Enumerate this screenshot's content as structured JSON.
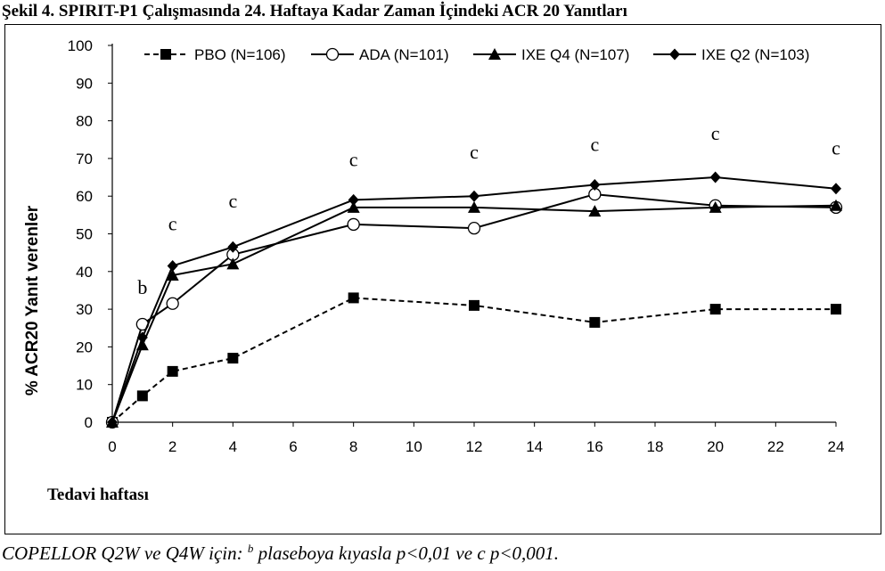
{
  "figure_title": "Şekil 4. SPIRIT-P1 Çalışmasında 24. Haftaya Kadar Zaman İçindeki ACR 20 Yanıtları",
  "footnote": {
    "prefix": "COPELLOR Q2W ve Q4W için: ",
    "sup_b": "b",
    "middle": " plaseboya kıyasla p<0,01 ve c p<0,001."
  },
  "chart_data": {
    "type": "line",
    "title": "",
    "xlabel": "Tedavi haftası",
    "ylabel": "% ACR20 Yanıt verenler",
    "xlim": [
      0,
      24
    ],
    "ylim": [
      0,
      100
    ],
    "xticks": [
      0,
      2,
      4,
      6,
      8,
      10,
      12,
      14,
      16,
      18,
      20,
      22,
      24
    ],
    "yticks": [
      0,
      10,
      20,
      30,
      40,
      50,
      60,
      70,
      80,
      90,
      100
    ],
    "grid": false,
    "legend_position": "top",
    "series": [
      {
        "name": "PBO (N=106)",
        "marker": "square",
        "line": "dashed",
        "color": "#000000",
        "x": [
          0,
          1,
          2,
          4,
          8,
          12,
          16,
          20,
          24
        ],
        "y": [
          0,
          7,
          13.5,
          17,
          33,
          31,
          26.5,
          30,
          30
        ]
      },
      {
        "name": "ADA (N=101)",
        "marker": "open-circle",
        "line": "solid",
        "color": "#000000",
        "x": [
          0,
          1,
          2,
          4,
          8,
          12,
          16,
          20,
          24
        ],
        "y": [
          0,
          26,
          31.5,
          44.5,
          52.5,
          51.5,
          60.5,
          57.5,
          57
        ]
      },
      {
        "name": "IXE Q4 (N=107)",
        "marker": "triangle",
        "line": "solid",
        "color": "#000000",
        "x": [
          0,
          1,
          2,
          4,
          8,
          12,
          16,
          20,
          24
        ],
        "y": [
          0,
          20.5,
          39,
          42,
          57,
          57,
          56,
          57,
          57.5
        ]
      },
      {
        "name": "IXE Q2 (N=103)",
        "marker": "diamond",
        "line": "solid",
        "color": "#000000",
        "x": [
          0,
          1,
          2,
          4,
          8,
          12,
          16,
          20,
          24
        ],
        "y": [
          0,
          22.5,
          41.5,
          46.5,
          59,
          60,
          63,
          65,
          62
        ]
      }
    ],
    "annotations": [
      {
        "text": "b",
        "x": 1,
        "y": 34
      },
      {
        "text": "c",
        "x": 2,
        "y": 51
      },
      {
        "text": "c",
        "x": 4,
        "y": 57
      },
      {
        "text": "c",
        "x": 8,
        "y": 68
      },
      {
        "text": "c",
        "x": 12,
        "y": 70
      },
      {
        "text": "c",
        "x": 16,
        "y": 72
      },
      {
        "text": "c",
        "x": 20,
        "y": 75
      },
      {
        "text": "c",
        "x": 24,
        "y": 71
      }
    ]
  }
}
